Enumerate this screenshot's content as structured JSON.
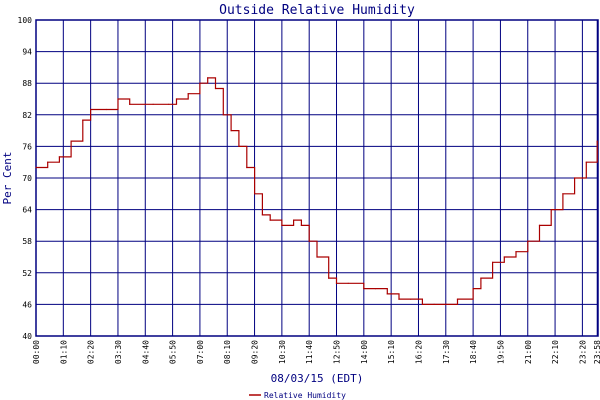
{
  "chart_data": {
    "type": "line",
    "title": "Outside Relative Humidity",
    "xlabel": "08/03/15 (EDT)",
    "ylabel": "Per Cent",
    "ylim": [
      40,
      100
    ],
    "y_ticks": [
      "40",
      "46",
      "52",
      "58",
      "64",
      "70",
      "76",
      "82",
      "88",
      "94",
      "100"
    ],
    "x_ticks": [
      "00:00",
      "01:10",
      "02:20",
      "03:30",
      "04:40",
      "05:50",
      "07:00",
      "08:10",
      "09:20",
      "10:30",
      "11:40",
      "12:50",
      "14:00",
      "15:10",
      "16:20",
      "17:30",
      "18:40",
      "19:50",
      "21:00",
      "22:10",
      "23:20",
      "23:58"
    ],
    "grid": true,
    "legend_position": "bottom-center",
    "colors": {
      "series": "#aa0000",
      "grid": "#000080",
      "text": "#000080",
      "axis_text": "#000000"
    },
    "series": [
      {
        "name": "Relative Humidity",
        "x": [
          "00:00",
          "00:30",
          "01:00",
          "01:30",
          "02:00",
          "02:20",
          "03:00",
          "03:30",
          "04:00",
          "04:40",
          "05:00",
          "05:40",
          "06:00",
          "06:30",
          "07:00",
          "07:20",
          "07:40",
          "08:00",
          "08:20",
          "08:40",
          "09:00",
          "09:20",
          "09:40",
          "10:00",
          "10:30",
          "11:00",
          "11:20",
          "11:40",
          "12:00",
          "12:30",
          "12:50",
          "13:20",
          "14:00",
          "14:30",
          "15:00",
          "15:30",
          "16:00",
          "16:30",
          "17:00",
          "17:30",
          "18:00",
          "18:40",
          "19:00",
          "19:30",
          "20:00",
          "20:30",
          "21:00",
          "21:30",
          "22:00",
          "22:30",
          "23:00",
          "23:30",
          "23:58"
        ],
        "y": [
          72,
          73,
          74,
          77,
          81,
          83,
          83,
          85,
          84,
          84,
          84,
          84,
          85,
          86,
          88,
          89,
          87,
          82,
          79,
          76,
          72,
          67,
          63,
          62,
          61,
          62,
          61,
          58,
          55,
          51,
          50,
          50,
          49,
          49,
          48,
          47,
          47,
          46,
          46,
          46,
          47,
          49,
          51,
          54,
          55,
          56,
          58,
          61,
          64,
          67,
          70,
          73,
          77
        ]
      }
    ],
    "legend": {
      "label": "Relative Humidity"
    }
  }
}
